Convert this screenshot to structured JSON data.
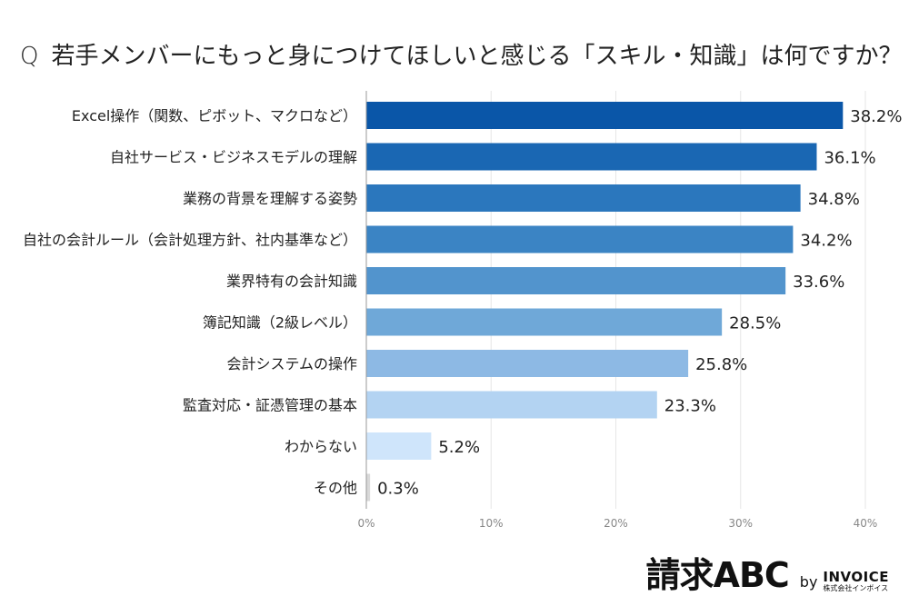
{
  "question": {
    "mark": "Q",
    "text": "若手メンバーにもっと身につけてほしいと感じる「スキル・知識」は何ですか？"
  },
  "chart_data": {
    "type": "bar",
    "orientation": "horizontal",
    "categories": [
      "Excel操作（関数、ピボット、マクロなど）",
      "自社サービス・ビジネスモデルの理解",
      "業務の背景を理解する姿勢",
      "自社の会計ルール（会計処理方針、社内基準など）",
      "業界特有の会計知識",
      "簿記知識（2級レベル）",
      "会計システムの操作",
      "監査対応・証憑管理の基本",
      "わからない",
      "その他"
    ],
    "values": [
      38.2,
      36.1,
      34.8,
      34.2,
      33.6,
      28.5,
      25.8,
      23.3,
      5.2,
      0.3
    ],
    "value_labels": [
      "38.2%",
      "36.1%",
      "34.8%",
      "34.2%",
      "33.6%",
      "28.5%",
      "25.8%",
      "23.3%",
      "5.2%",
      "0.3%"
    ],
    "colors": [
      "#0a56a8",
      "#1a67b3",
      "#2b77bd",
      "#3b84c4",
      "#5294cd",
      "#6fa8d8",
      "#8db9e4",
      "#b3d3f2",
      "#cfe5fb",
      "#d9d9d9"
    ],
    "xlim": [
      0,
      40
    ],
    "x_ticks": [
      "0%",
      "10%",
      "20%",
      "30%",
      "40%"
    ],
    "x_tick_values": [
      0,
      10,
      20,
      30,
      40
    ],
    "grid": true
  },
  "logo": {
    "brand": "請求ABC",
    "by": "by",
    "maker": "INVOICE",
    "maker_sub": "株式会社インボイス"
  }
}
